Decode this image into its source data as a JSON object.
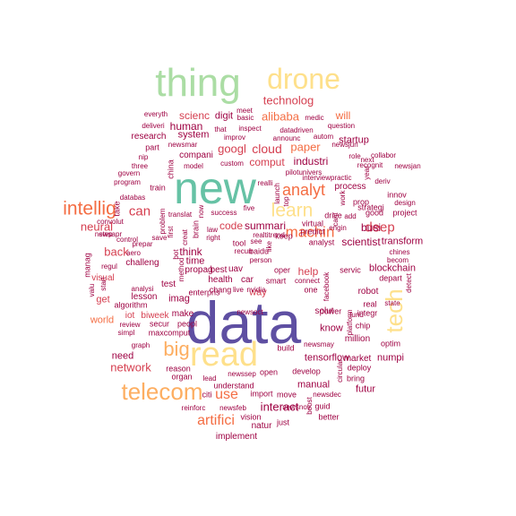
{
  "palette": {
    "dark_red": "#9E0142",
    "red": "#D53E4F",
    "orange": "#F46D43",
    "light_orange": "#FDAE61",
    "yellow": "#FEE08B",
    "light_green": "#ABDDA4",
    "teal": "#66C2A5",
    "purple": "#5E4FA2"
  },
  "words": [
    "data",
    "new",
    "read",
    "thing",
    "drone",
    "tech",
    "telecom",
    "big",
    "intellig",
    "learn",
    "machin",
    "analyt",
    "deep",
    "can",
    "use",
    "artifici",
    "network",
    "technolog",
    "cloud",
    "paper",
    "googl",
    "comput",
    "scienc",
    "human",
    "will",
    "alibaba",
    "startup",
    "industri",
    "busi",
    "scientist",
    "transform",
    "blockchain",
    "neural",
    "back",
    "think",
    "code",
    "summari",
    "interact",
    "manual",
    "tensorflow",
    "help",
    "futur",
    "implement",
    "world",
    "need",
    "numpi",
    "imag",
    "make",
    "time",
    "way",
    "know",
    "system",
    "compani",
    "digit",
    "research",
    "process",
    "robot",
    "solut",
    "million",
    "market",
    "get",
    "iot",
    "biweek",
    "visual",
    "lesson",
    "algorithm",
    "health",
    "car",
    "chang",
    "live",
    "nvidia",
    "one",
    "servic",
    "depart",
    "integr",
    "power",
    "chip",
    "build",
    "newsmay",
    "newsdec",
    "develop",
    "open",
    "import",
    "move",
    "understand",
    "newssep",
    "reason",
    "organ",
    "lead",
    "citi",
    "peopl",
    "secur",
    "maxcomput",
    "simpl",
    "review",
    "challeng",
    "test",
    "enterpris",
    "propag",
    "uav",
    "best",
    "tool",
    "see",
    "baidu",
    "oper",
    "smart",
    "realtitrend",
    "keep",
    "predict",
    "analyst",
    "virtual",
    "drive",
    "add",
    "strategi",
    "fund",
    "real",
    "optim",
    "deploy",
    "bring",
    "guid",
    "better",
    "natur",
    "just",
    "newsfeb",
    "vision",
    "reinforc",
    "newsnov",
    "boost",
    "circular",
    "platform",
    "facebook",
    "cant",
    "prop",
    "good",
    "project",
    "innov",
    "deriv",
    "design",
    "chines",
    "state",
    "detect",
    "becom",
    "next",
    "engin",
    "recognit",
    "newsjan",
    "role",
    "collabor",
    "question",
    "autom",
    "announc",
    "datadriven",
    "medic",
    "meet",
    "basic",
    "inspect",
    "improv",
    "that",
    "newsmar",
    "model",
    "custom",
    "pilotunivers",
    "realli",
    "interviewpractic",
    "work",
    "year",
    "launch",
    "top",
    "everyth",
    "deliveri",
    "part",
    "nip",
    "three",
    "govern",
    "program",
    "databas",
    "convolut",
    "newsapr",
    "control",
    "step",
    "regul",
    "valu",
    "start",
    "manag",
    "graph",
    "train",
    "china",
    "take",
    "translat",
    "success",
    "five",
    "problem",
    "first",
    "bot",
    "creat",
    "law",
    "brain",
    "now",
    "save",
    "right",
    "method",
    "person",
    "recurr",
    "like",
    "newsoct",
    "newsjun",
    "analysi",
    "aero",
    "prepar",
    "connect"
  ]
}
